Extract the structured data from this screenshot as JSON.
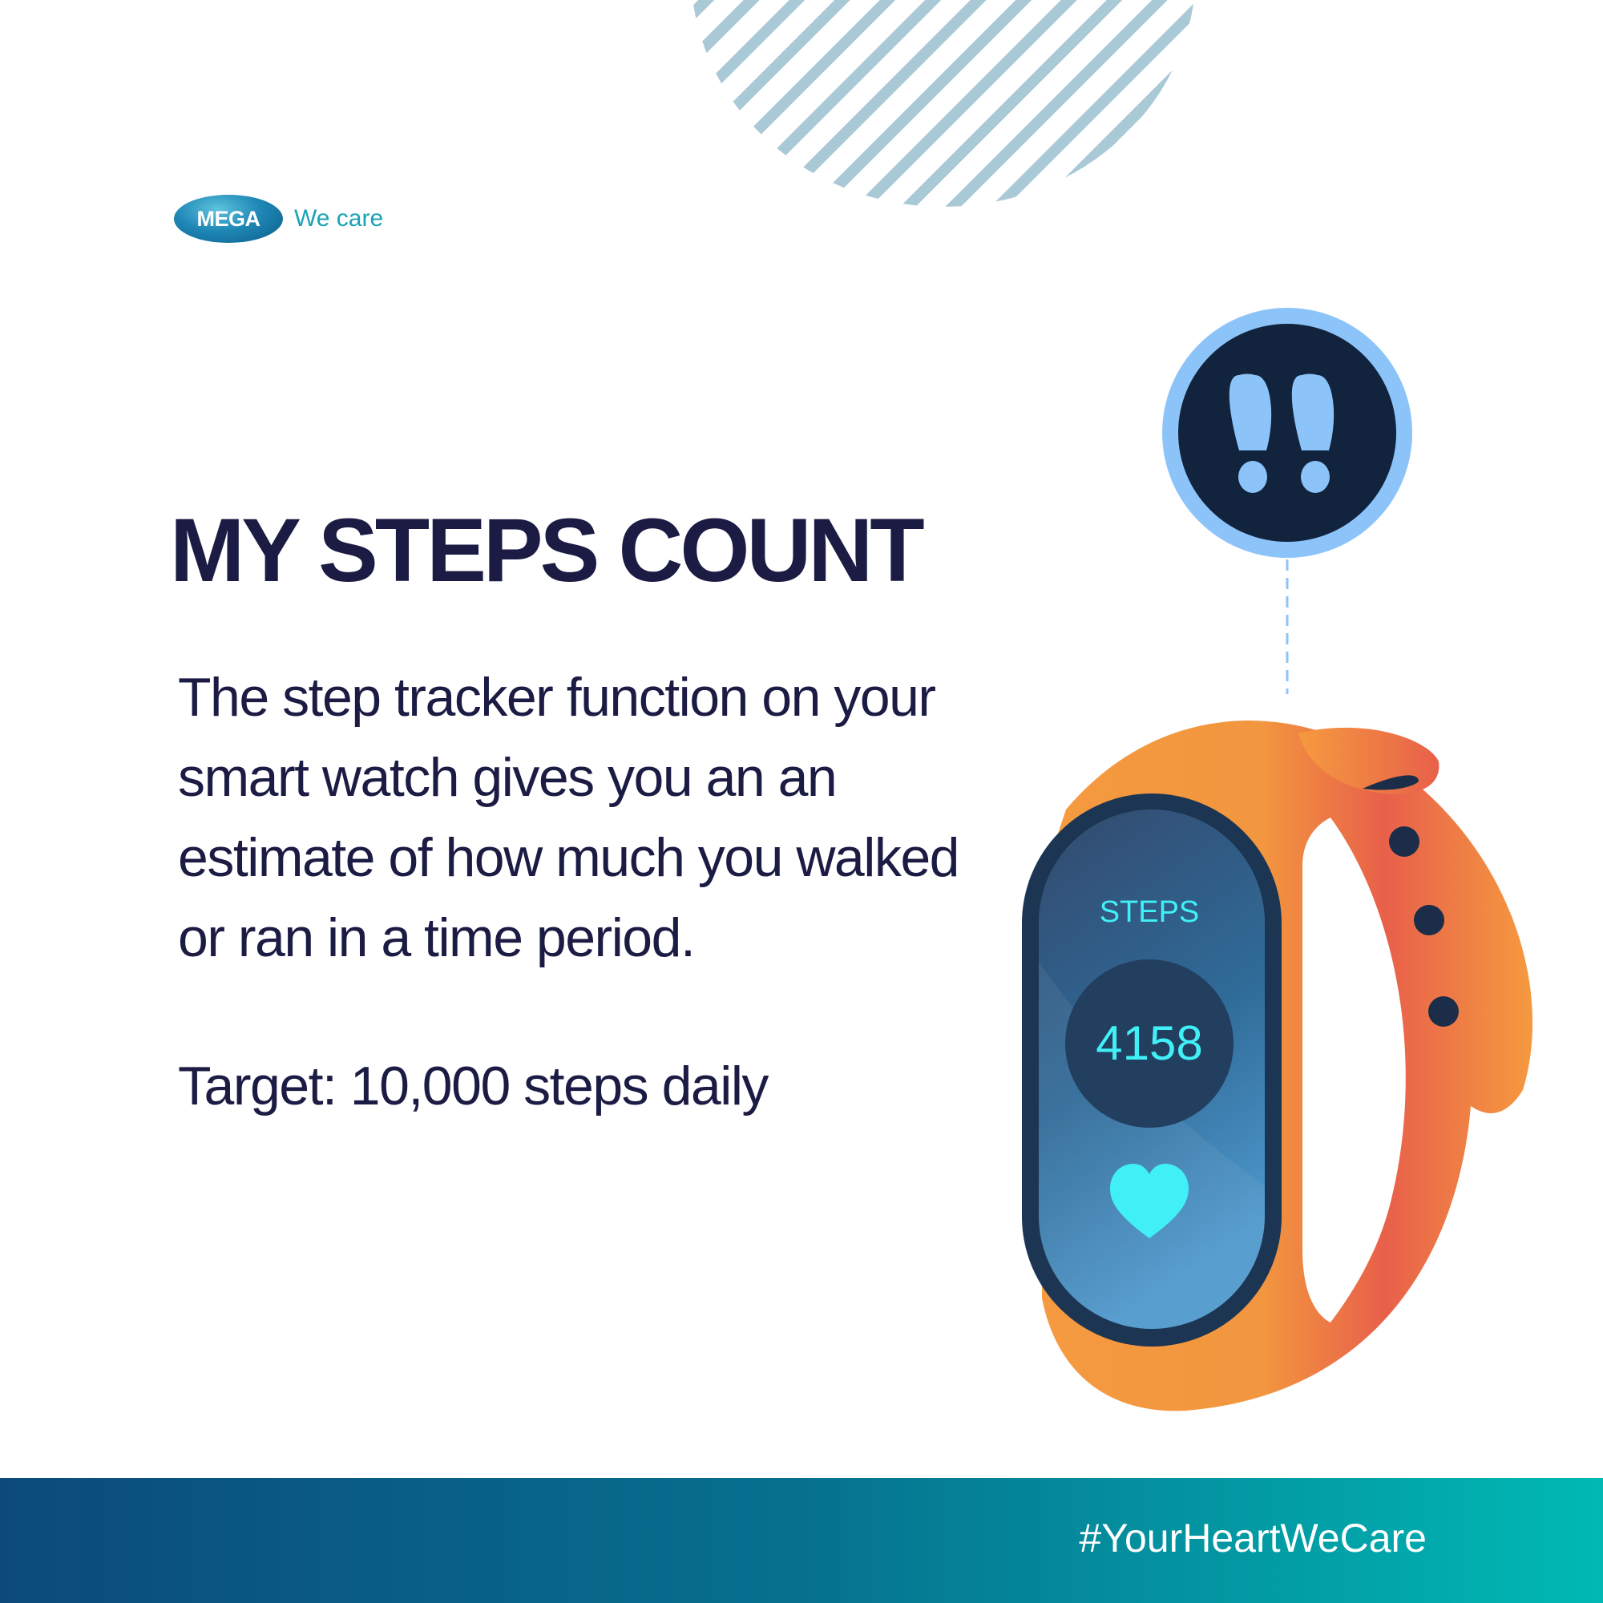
{
  "brand": {
    "logo_text": "MEGA",
    "tagline": "We care"
  },
  "headline": "MY STEPS COUNT",
  "description": "The step tracker function on your smart watch gives you an an estimate of how much you walked or ran in a time period.",
  "target": "Target: 10,000 steps daily",
  "watch": {
    "label": "STEPS",
    "count": "4158"
  },
  "icons": {
    "footprints": "footprints-icon",
    "heart": "heart-icon"
  },
  "colors": {
    "navy_text": "#1b1b44",
    "band_orange": "#f59a40",
    "band_red": "#e8604a",
    "screen_blue": "#3a80b5",
    "accent_cyan": "#41f0f7",
    "icon_ring": "#8cc4fa",
    "icon_fill": "#12233d"
  },
  "footer": {
    "hashtag": "#YourHeartWeCare"
  }
}
